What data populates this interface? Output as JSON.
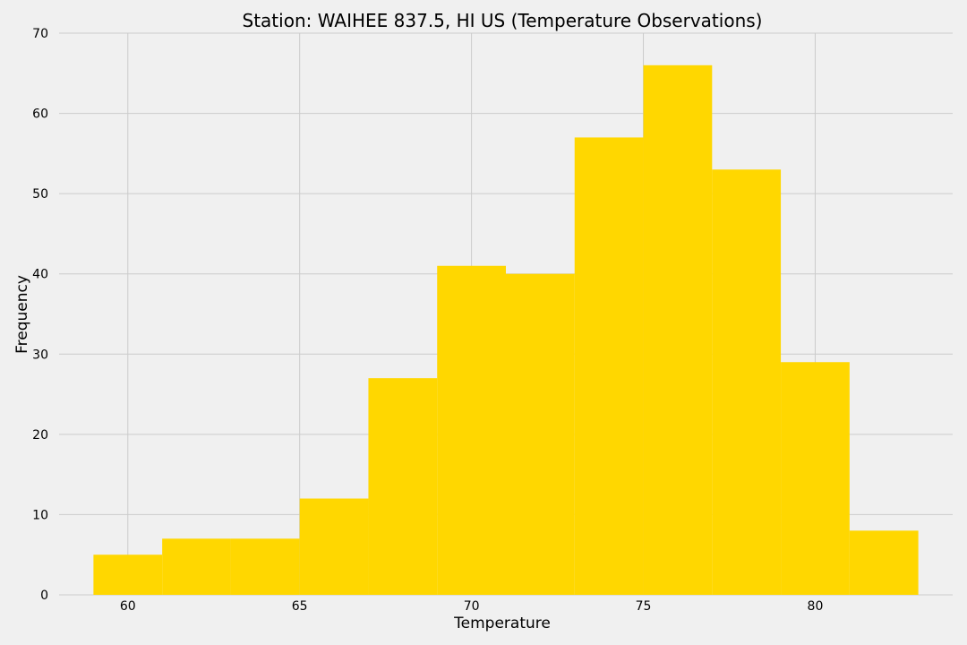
{
  "chart_data": {
    "type": "bar",
    "subtype": "histogram",
    "title": "Station: WAIHEE 837.5, HI US (Temperature Observations)",
    "xlabel": "Temperature",
    "ylabel": "Frequency",
    "xlim": [
      58,
      84
    ],
    "ylim": [
      0,
      70
    ],
    "x_ticks": [
      60,
      65,
      70,
      75,
      80
    ],
    "y_ticks": [
      0,
      10,
      20,
      30,
      40,
      50,
      60,
      70
    ],
    "grid": true,
    "legend": "none",
    "bin_edges": [
      59,
      61,
      63,
      65,
      67,
      69,
      71,
      73,
      75,
      77,
      79,
      81,
      83
    ],
    "values": [
      5,
      7,
      7,
      12,
      27,
      41,
      40,
      57,
      66,
      53,
      29,
      8
    ],
    "bar_color": "#ffd700",
    "background_color": "#f0f0f0",
    "grid_color": "#cbcbcb"
  }
}
